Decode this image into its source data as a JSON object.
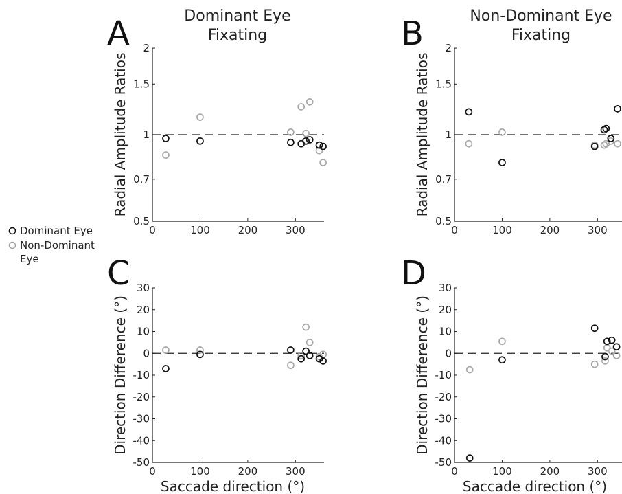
{
  "legend": {
    "items": [
      {
        "label": "Dominant Eye",
        "color": "#111111"
      },
      {
        "label": "Non-Dominant Eye",
        "color": "#a8a8a8"
      }
    ]
  },
  "panel_labels": [
    "A",
    "B",
    "C",
    "D"
  ],
  "titles": {
    "A": [
      "Dominant Eye",
      "Fixating"
    ],
    "B": [
      "Non-Dominant Eye",
      "Fixating"
    ]
  },
  "colors": {
    "dominant": "#111111",
    "nondominant": "#a8a8a8"
  },
  "chart_data": [
    {
      "panel": "A",
      "type": "scatter",
      "title": "Dominant Eye Fixating",
      "xlabel": "",
      "ylabel": "Radial Amplitude Ratios",
      "xlim": [
        0,
        360
      ],
      "ylim": [
        0.5,
        2
      ],
      "yscale": "log",
      "xticks": [
        0,
        100,
        200,
        300
      ],
      "yticks": [
        0.5,
        0.7,
        1,
        1.5,
        2
      ],
      "yticklabels": [
        "0.5",
        "0.7",
        "1",
        "1.5",
        "2"
      ],
      "reference_line": 1,
      "series": [
        {
          "name": "Dominant Eye",
          "x": [
            28,
            100,
            290,
            312,
            322,
            330,
            350,
            358
          ],
          "y": [
            0.97,
            0.95,
            0.94,
            0.93,
            0.95,
            0.96,
            0.92,
            0.91
          ]
        },
        {
          "name": "Non-Dominant Eye",
          "x": [
            28,
            100,
            290,
            312,
            322,
            330,
            350,
            358
          ],
          "y": [
            0.85,
            1.15,
            1.02,
            1.25,
            1.01,
            1.3,
            0.88,
            0.8
          ]
        }
      ]
    },
    {
      "panel": "B",
      "type": "scatter",
      "title": "Non-Dominant Eye Fixating",
      "xlabel": "",
      "ylabel": "Radial Amplitude Ratios",
      "xlim": [
        0,
        360
      ],
      "ylim": [
        0.5,
        2
      ],
      "yscale": "log",
      "xticks": [
        0,
        100,
        200,
        300
      ],
      "yticks": [
        0.5,
        0.7,
        1,
        1.5,
        2
      ],
      "yticklabels": [
        "0.5",
        "0.7",
        "1",
        "1.5",
        "2"
      ],
      "reference_line": 1,
      "series": [
        {
          "name": "Dominant Eye",
          "x": [
            30,
            100,
            294,
            314,
            318,
            328,
            342
          ],
          "y": [
            1.2,
            0.8,
            0.91,
            1.04,
            1.05,
            0.97,
            1.23
          ]
        },
        {
          "name": "Non-Dominant Eye",
          "x": [
            30,
            100,
            294,
            314,
            318,
            328,
            342
          ],
          "y": [
            0.93,
            1.02,
            0.92,
            0.92,
            0.93,
            0.95,
            0.93
          ]
        }
      ]
    },
    {
      "panel": "C",
      "type": "scatter",
      "title": "",
      "xlabel": "Saccade direction (°)",
      "ylabel": "Direction Difference (°)",
      "xlim": [
        0,
        360
      ],
      "ylim": [
        -50,
        30
      ],
      "xticks": [
        0,
        100,
        200,
        300
      ],
      "yticks": [
        -50,
        -40,
        -30,
        -20,
        -10,
        0,
        10,
        20,
        30
      ],
      "yticklabels": [
        "-50",
        "-40",
        "-30",
        "-20",
        "-10",
        "0",
        "10",
        "20",
        "30"
      ],
      "reference_line": 0,
      "series": [
        {
          "name": "Dominant Eye",
          "x": [
            28,
            100,
            290,
            312,
            322,
            330,
            350,
            358
          ],
          "y": [
            -7,
            -0.5,
            1.5,
            -2.5,
            1,
            -1,
            -2.5,
            -3.5
          ]
        },
        {
          "name": "Non-Dominant Eye",
          "x": [
            28,
            100,
            290,
            312,
            322,
            330,
            350,
            358
          ],
          "y": [
            1.5,
            1.5,
            -5.5,
            -1,
            12,
            5,
            -1.5,
            -0.5
          ]
        }
      ]
    },
    {
      "panel": "D",
      "type": "scatter",
      "title": "",
      "xlabel": "Saccade direction (°)",
      "ylabel": "Direction Difference (°)",
      "xlim": [
        0,
        360
      ],
      "ylim": [
        -50,
        30
      ],
      "xticks": [
        0,
        100,
        200,
        300
      ],
      "yticks": [
        -50,
        -40,
        -30,
        -20,
        -10,
        0,
        10,
        20,
        30
      ],
      "yticklabels": [
        "-50",
        "-40",
        "-30",
        "-20",
        "-10",
        "0",
        "10",
        "20",
        "30"
      ],
      "reference_line": 0,
      "series": [
        {
          "name": "Dominant Eye",
          "x": [
            32,
            100,
            294,
            316,
            320,
            330,
            340
          ],
          "y": [
            -48,
            -3,
            11.5,
            -1.5,
            5.5,
            6,
            3
          ]
        },
        {
          "name": "Non-Dominant Eye",
          "x": [
            32,
            100,
            294,
            316,
            320,
            330,
            340
          ],
          "y": [
            -7.5,
            5.5,
            -5,
            -3.5,
            2.5,
            1,
            -1
          ]
        }
      ]
    }
  ]
}
